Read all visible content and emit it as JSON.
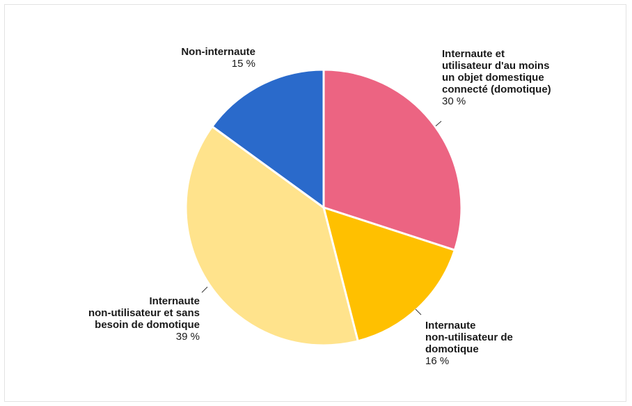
{
  "chart_data": {
    "type": "pie",
    "slices": [
      {
        "label": "Internaute et utilisateur d'au moins un objet domestique connecté (domotique)",
        "label_lines": [
          "Internaute et",
          "utilisateur d'au moins",
          "un objet domestique",
          "connecté (domotique)"
        ],
        "value": 30,
        "value_label": "30 %",
        "color": "#ec6482"
      },
      {
        "label": "Internaute non-utilisateur de domotique",
        "label_lines": [
          "Internaute",
          "non-utilisateur de",
          "domotique"
        ],
        "value": 16,
        "value_label": "16 %",
        "color": "#ffc000"
      },
      {
        "label": "Internaute non-utilisateur et sans besoin de domotique",
        "label_lines": [
          "Internaute",
          "non-utilisateur et sans",
          "besoin de domotique"
        ],
        "value": 39,
        "value_label": "39 %",
        "color": "#ffe38c"
      },
      {
        "label": "Non-internaute",
        "label_lines": [
          "Non-internaute"
        ],
        "value": 15,
        "value_label": "15 %",
        "color": "#2a6acb"
      }
    ]
  }
}
